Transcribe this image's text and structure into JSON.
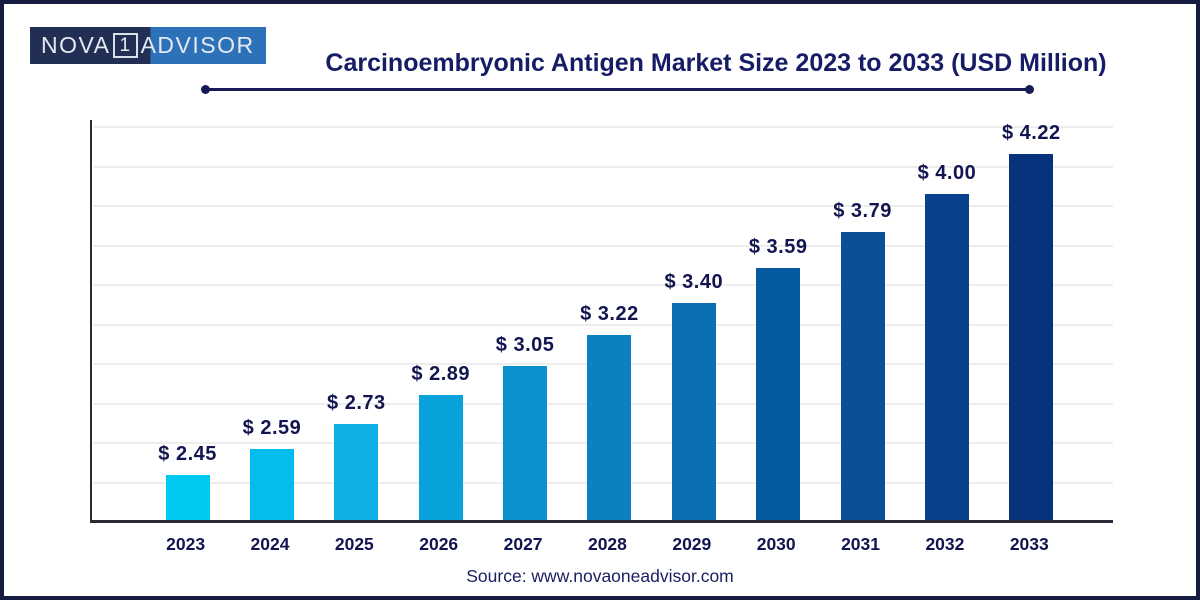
{
  "logo": {
    "left": "NOVA",
    "one": "1",
    "right": "ADVISOR"
  },
  "header": {
    "title": "Carcinoembryonic Antigen Market Size 2023 to 2033 (USD Million)"
  },
  "source": {
    "text": "Source: www.novaoneadvisor.com"
  },
  "colors": {
    "page_border": "#151c40",
    "title_text": "#161c66",
    "label_text": "#12154f",
    "axis_line": "#2b2838",
    "gridline": "#ededed",
    "title_underline": "#141b56",
    "logo_left_bg": "#222f54",
    "logo_right_bg": "#2d72b9",
    "logo_text": "#e3e9f2",
    "source_text": "#1b1e60"
  },
  "chart_data": {
    "type": "bar",
    "title": "Carcinoembryonic Antigen Market Size 2023 to 2033 (USD Million)",
    "unit": "USD Million",
    "categories": [
      "2023",
      "2024",
      "2025",
      "2026",
      "2027",
      "2028",
      "2029",
      "2030",
      "2031",
      "2032",
      "2033"
    ],
    "values": [
      2.45,
      2.59,
      2.73,
      2.89,
      3.05,
      3.22,
      3.4,
      3.59,
      3.79,
      4.0,
      4.22
    ],
    "value_labels": [
      "$ 2.45",
      "$ 2.59",
      "$ 2.73",
      "$ 2.89",
      "$ 3.05",
      "$ 3.22",
      "$ 3.40",
      "$ 3.59",
      "$ 3.79",
      "$ 4.00",
      "$ 4.22"
    ],
    "bar_colors": [
      "#00c9f2",
      "#04bcee",
      "#0fb0e4",
      "#09a3dc",
      "#0992cf",
      "#0c81c2",
      "#0a6fb1",
      "#05599e",
      "#0b4f97",
      "#0a418c",
      "#07337d"
    ],
    "xlabel": "",
    "ylabel": "",
    "ylim": [
      2.2,
      4.41
    ],
    "grid": "horizontal-only",
    "legend": "none",
    "source": "Source: www.novaoneadvisor.com"
  }
}
